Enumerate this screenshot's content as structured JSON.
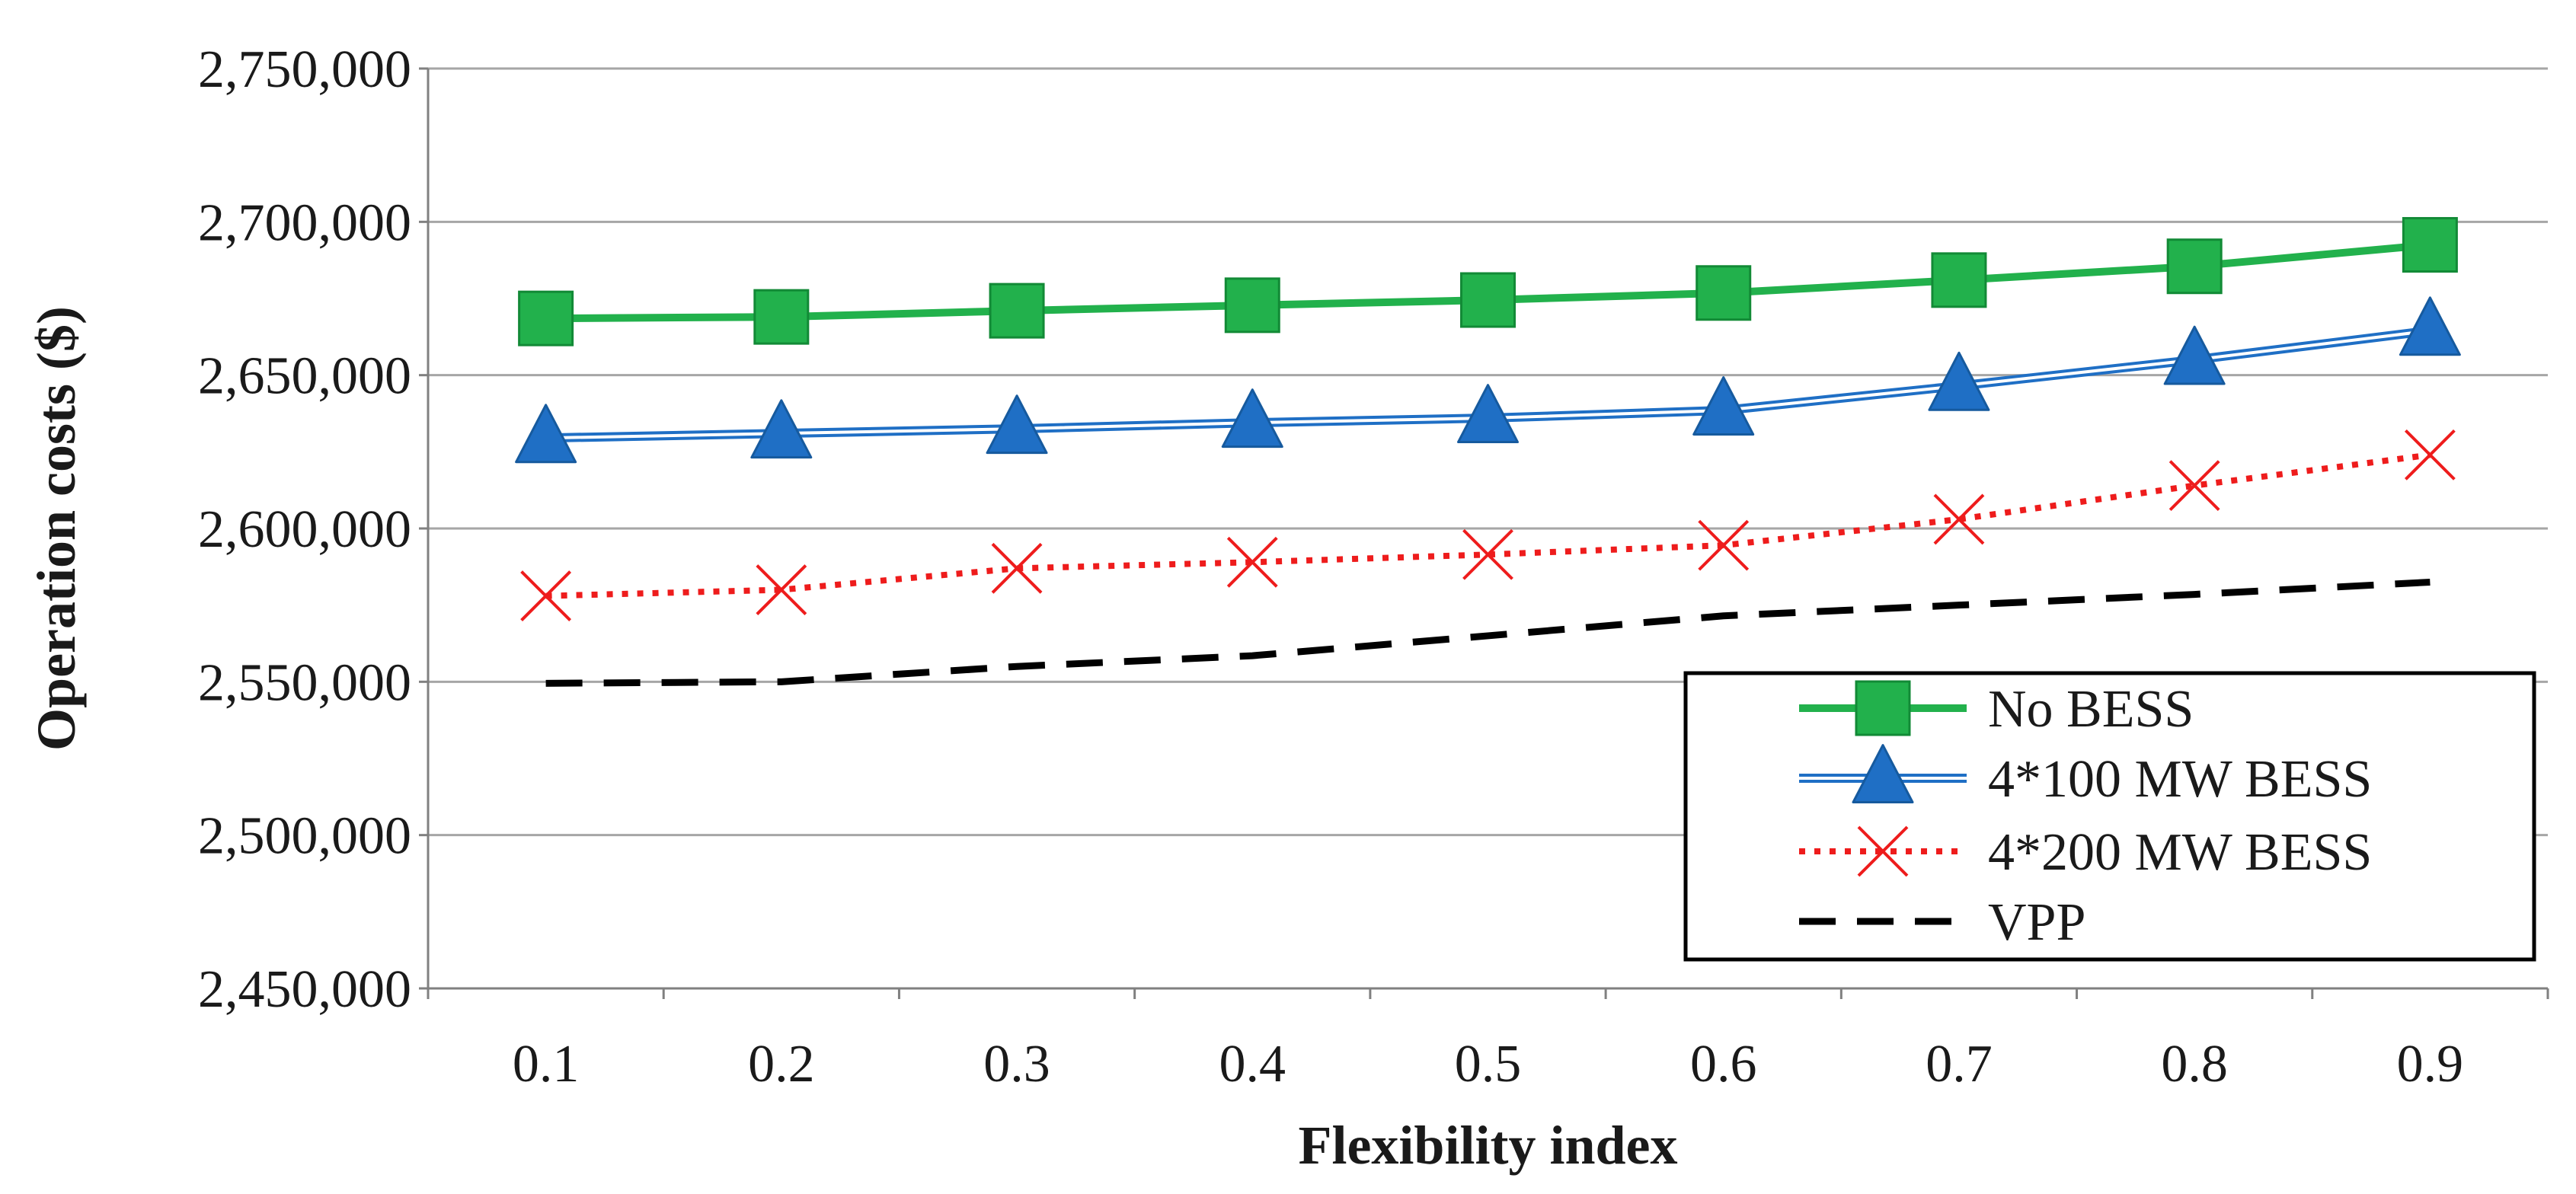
{
  "chart_data": {
    "type": "line",
    "title": "",
    "xlabel": "Flexibility index",
    "ylabel": "Operation costs ($)",
    "categories": [
      "0.1",
      "0.2",
      "0.3",
      "0.4",
      "0.5",
      "0.6",
      "0.7",
      "0.8",
      "0.9"
    ],
    "ylim": [
      2450000,
      2750000
    ],
    "ytick_step": 50000,
    "y_ticks": [
      "2,450,000",
      "2,500,000",
      "2,550,000",
      "2,600,000",
      "2,650,000",
      "2,700,000",
      "2,750,000"
    ],
    "grid": true,
    "legend_position": "bottom-right",
    "series": [
      {
        "name": "No BESS",
        "color": "#22b14c",
        "marker": "square",
        "line": "solid",
        "values": [
          2668500,
          2669000,
          2671000,
          2672800,
          2674500,
          2676800,
          2681000,
          2685500,
          2692500
        ]
      },
      {
        "name": "4*100 MW BESS",
        "color": "#1f6fc5",
        "marker": "triangle",
        "line": "double",
        "values": [
          2629500,
          2631000,
          2632500,
          2634500,
          2636000,
          2638500,
          2646500,
          2655000,
          2664500
        ]
      },
      {
        "name": "4*200 MW BESS",
        "color": "#ee1c1c",
        "marker": "x",
        "line": "dotted",
        "values": [
          2578000,
          2580000,
          2587000,
          2589000,
          2591500,
          2594500,
          2603000,
          2614000,
          2624000
        ]
      },
      {
        "name": "VPP",
        "color": "#000000",
        "marker": "none",
        "line": "dashed",
        "values": [
          2549500,
          2550000,
          2555000,
          2558500,
          2565000,
          2571500,
          2575000,
          2578500,
          2582500
        ]
      }
    ]
  }
}
